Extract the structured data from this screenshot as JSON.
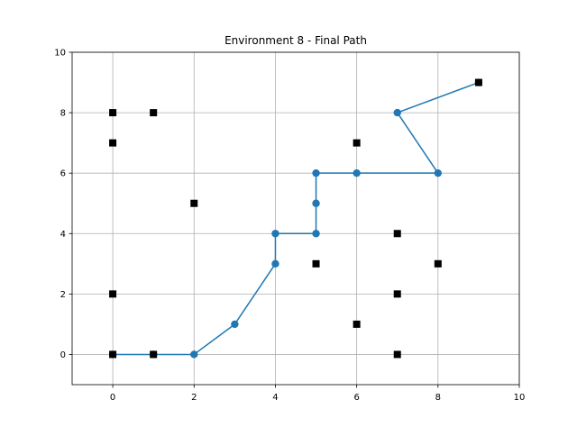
{
  "chart_data": {
    "type": "line",
    "title": "Environment 8 - Final Path",
    "xlabel": "",
    "ylabel": "",
    "xlim": [
      -1,
      10
    ],
    "ylim": [
      -1,
      10
    ],
    "xticks": [
      0,
      2,
      4,
      6,
      8,
      10
    ],
    "yticks": [
      0,
      2,
      4,
      6,
      8,
      10
    ],
    "grid": true,
    "series": [
      {
        "kind": "path",
        "color": "#1f77b4",
        "marker": "circle",
        "x": [
          0,
          1,
          2,
          3,
          4,
          4,
          5,
          5,
          5,
          6,
          8,
          7,
          9
        ],
        "y": [
          0,
          0,
          0,
          1,
          3,
          4,
          4,
          5,
          6,
          6,
          6,
          8,
          9
        ]
      },
      {
        "kind": "obstacles",
        "color": "#000000",
        "marker": "square",
        "x": [
          0,
          0,
          0,
          0,
          1,
          1,
          2,
          5,
          6,
          6,
          7,
          7,
          7,
          8,
          9
        ],
        "y": [
          0,
          2,
          7,
          8,
          0,
          8,
          5,
          3,
          1,
          7,
          0,
          2,
          4,
          3,
          9
        ]
      }
    ]
  }
}
